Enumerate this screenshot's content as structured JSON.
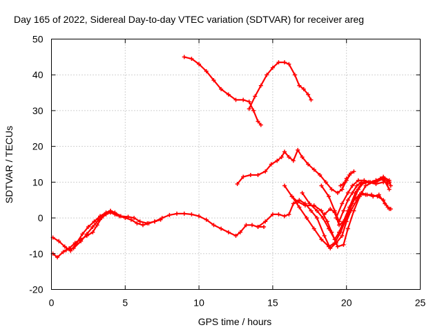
{
  "chart_data": {
    "type": "line",
    "title": "Day 165 of 2022, Sidereal Day-to-day VTEC variation (SDTVAR) for receiver areg",
    "xlabel": "GPS time / hours",
    "ylabel": "SDTVAR / TECUs",
    "xlim": [
      0,
      25
    ],
    "ylim": [
      -20,
      50
    ],
    "xticks": [
      0,
      5,
      10,
      15,
      20,
      25
    ],
    "yticks": [
      -20,
      -10,
      0,
      10,
      20,
      30,
      40,
      50
    ],
    "grid": true,
    "color": "#ff0000",
    "series": [
      {
        "points": [
          [
            0.1,
            -5.5
          ],
          [
            0.5,
            -6.5
          ],
          [
            0.9,
            -8
          ],
          [
            1.3,
            -9.2
          ],
          [
            1.7,
            -7
          ],
          [
            2.1,
            -4.5
          ],
          [
            2.5,
            -2.5
          ],
          [
            2.9,
            -1
          ],
          [
            3.3,
            0.5
          ],
          [
            3.7,
            1.5
          ],
          [
            4.0,
            2
          ],
          [
            4.3,
            1.5
          ],
          [
            4.7,
            0.5
          ],
          [
            5.2,
            0.3
          ],
          [
            5.6,
            0
          ],
          [
            6.0,
            -1
          ],
          [
            6.5,
            -1.5
          ],
          [
            7.0,
            -1
          ],
          [
            7.5,
            0
          ],
          [
            8.0,
            0.8
          ],
          [
            8.5,
            1.2
          ],
          [
            9.0,
            1.2
          ],
          [
            9.5,
            1
          ],
          [
            10.0,
            0.5
          ],
          [
            10.5,
            -0.5
          ],
          [
            11.0,
            -2
          ],
          [
            11.5,
            -3
          ],
          [
            12.0,
            -4
          ],
          [
            12.5,
            -5
          ],
          [
            12.8,
            -4
          ],
          [
            13.2,
            -2
          ],
          [
            13.6,
            -2
          ],
          [
            14.0,
            -2.5
          ],
          [
            14.4,
            -2.5
          ]
        ]
      },
      {
        "points": [
          [
            0.1,
            -10
          ],
          [
            0.4,
            -11
          ],
          [
            0.8,
            -9.5
          ],
          [
            1.2,
            -8.5
          ],
          [
            1.6,
            -7
          ],
          [
            2.0,
            -6
          ],
          [
            2.4,
            -5
          ],
          [
            2.8,
            -4
          ],
          [
            3.1,
            -2
          ],
          [
            3.4,
            0
          ],
          [
            3.7,
            1
          ],
          [
            4.0,
            1.5
          ],
          [
            4.3,
            1
          ],
          [
            4.6,
            0.5
          ],
          [
            5.0,
            0
          ],
          [
            5.4,
            -0.5
          ],
          [
            5.8,
            -1.5
          ],
          [
            6.2,
            -2
          ],
          [
            6.6,
            -1.5
          ],
          [
            7.0,
            -1
          ],
          [
            7.4,
            -0.5
          ]
        ]
      },
      {
        "points": [
          [
            1.0,
            -9
          ],
          [
            1.5,
            -8.5
          ],
          [
            2.0,
            -6.5
          ],
          [
            2.4,
            -4.5
          ],
          [
            2.8,
            -2.5
          ],
          [
            3.2,
            -0.5
          ],
          [
            3.6,
            1
          ],
          [
            4.0,
            1.8
          ],
          [
            4.4,
            1
          ]
        ]
      },
      {
        "points": [
          [
            9.0,
            45
          ],
          [
            9.5,
            44.5
          ],
          [
            10.0,
            43
          ],
          [
            10.5,
            41
          ],
          [
            11.0,
            38.5
          ],
          [
            11.5,
            36
          ],
          [
            12.0,
            34.5
          ],
          [
            12.5,
            33
          ],
          [
            13.0,
            33
          ],
          [
            13.4,
            32.5
          ],
          [
            13.7,
            30
          ],
          [
            14.0,
            27
          ],
          [
            14.2,
            26
          ]
        ]
      },
      {
        "points": [
          [
            13.4,
            30.5
          ],
          [
            13.8,
            34
          ],
          [
            14.2,
            37
          ],
          [
            14.6,
            40
          ],
          [
            15.0,
            42
          ],
          [
            15.4,
            43.5
          ],
          [
            15.8,
            43.5
          ],
          [
            16.1,
            43
          ],
          [
            16.5,
            40
          ],
          [
            16.8,
            37
          ],
          [
            17.1,
            36
          ],
          [
            17.4,
            34.5
          ],
          [
            17.6,
            33
          ]
        ]
      },
      {
        "points": [
          [
            12.6,
            9.5
          ],
          [
            13.0,
            11.5
          ],
          [
            13.5,
            12
          ],
          [
            14.0,
            12
          ],
          [
            14.5,
            13
          ],
          [
            14.9,
            15
          ],
          [
            15.3,
            16
          ],
          [
            15.6,
            17
          ],
          [
            15.8,
            18.5
          ],
          [
            16.1,
            17
          ],
          [
            16.4,
            16
          ],
          [
            16.7,
            19
          ],
          [
            17.0,
            17
          ],
          [
            17.4,
            15
          ],
          [
            17.8,
            13.5
          ],
          [
            18.2,
            12
          ],
          [
            18.6,
            10
          ],
          [
            19.0,
            8
          ],
          [
            19.4,
            7
          ],
          [
            19.7,
            8
          ],
          [
            20.0,
            11
          ]
        ]
      },
      {
        "points": [
          [
            14.0,
            -2.5
          ],
          [
            14.5,
            -1
          ],
          [
            15.0,
            1
          ],
          [
            15.4,
            1
          ],
          [
            15.8,
            0.5
          ],
          [
            16.1,
            1
          ],
          [
            16.4,
            4
          ],
          [
            16.8,
            5
          ],
          [
            17.2,
            4
          ],
          [
            17.6,
            2
          ],
          [
            18.0,
            0
          ],
          [
            18.5,
            -5
          ],
          [
            18.9,
            -8.5
          ],
          [
            19.3,
            -7
          ],
          [
            19.7,
            -5
          ],
          [
            20.0,
            -1
          ],
          [
            20.3,
            2
          ],
          [
            20.7,
            5
          ],
          [
            21.0,
            7
          ],
          [
            21.4,
            6.5
          ],
          [
            21.8,
            6
          ],
          [
            22.2,
            6.5
          ],
          [
            22.6,
            4
          ],
          [
            22.9,
            2.5
          ]
        ]
      },
      {
        "points": [
          [
            15.8,
            9
          ],
          [
            16.3,
            6
          ],
          [
            16.8,
            3
          ],
          [
            17.3,
            0
          ],
          [
            17.8,
            -3
          ],
          [
            18.3,
            -6
          ],
          [
            18.8,
            -8
          ],
          [
            19.2,
            -7
          ],
          [
            19.6,
            -4
          ],
          [
            20.0,
            0
          ],
          [
            20.4,
            4
          ],
          [
            20.8,
            8
          ],
          [
            21.2,
            10
          ],
          [
            21.6,
            10
          ],
          [
            22.0,
            10.5
          ],
          [
            22.5,
            11
          ],
          [
            22.9,
            8
          ]
        ]
      },
      {
        "points": [
          [
            16.3,
            6
          ],
          [
            16.7,
            4.5
          ],
          [
            17.2,
            3.5
          ],
          [
            17.8,
            3.5
          ],
          [
            18.3,
            2
          ],
          [
            18.7,
            -1
          ],
          [
            19.0,
            -4
          ],
          [
            19.4,
            -8
          ],
          [
            19.8,
            -7.5
          ],
          [
            20.1,
            -3
          ],
          [
            20.5,
            2
          ],
          [
            20.9,
            6
          ],
          [
            21.3,
            9
          ],
          [
            21.8,
            10
          ],
          [
            22.3,
            11
          ],
          [
            22.8,
            9.5
          ]
        ]
      },
      {
        "points": [
          [
            17.0,
            7
          ],
          [
            17.5,
            4
          ],
          [
            18.0,
            2
          ],
          [
            18.4,
            0
          ],
          [
            18.8,
            -3
          ],
          [
            19.2,
            -6
          ],
          [
            19.5,
            -4
          ],
          [
            19.8,
            -1
          ],
          [
            20.2,
            3
          ],
          [
            20.6,
            7
          ],
          [
            21.0,
            9.5
          ],
          [
            21.5,
            10
          ],
          [
            22.0,
            10
          ],
          [
            22.5,
            11
          ],
          [
            22.9,
            10
          ]
        ]
      },
      {
        "points": [
          [
            18.3,
            9
          ],
          [
            18.8,
            6
          ],
          [
            19.2,
            2
          ],
          [
            19.5,
            -1
          ],
          [
            19.8,
            2
          ],
          [
            20.1,
            5
          ],
          [
            20.4,
            7
          ],
          [
            20.7,
            9
          ],
          [
            21.0,
            10
          ],
          [
            21.5,
            10
          ],
          [
            22.0,
            9.5
          ],
          [
            22.5,
            10
          ],
          [
            22.9,
            10
          ]
        ]
      },
      {
        "points": [
          [
            18.5,
            1
          ],
          [
            18.9,
            2.5
          ],
          [
            19.2,
            1.5
          ],
          [
            19.5,
            -2
          ],
          [
            19.8,
            -1
          ],
          [
            20.1,
            2
          ],
          [
            20.5,
            5
          ],
          [
            20.9,
            6.5
          ],
          [
            21.3,
            6.5
          ],
          [
            21.7,
            6.5
          ],
          [
            22.1,
            6
          ],
          [
            22.5,
            5
          ],
          [
            22.8,
            3
          ],
          [
            23.0,
            2.5
          ]
        ]
      },
      {
        "points": [
          [
            19.3,
            0
          ],
          [
            19.7,
            4
          ],
          [
            20.1,
            7
          ],
          [
            20.4,
            9
          ],
          [
            20.8,
            10.5
          ],
          [
            21.2,
            10.5
          ],
          [
            21.6,
            10
          ],
          [
            22.0,
            10.5
          ],
          [
            22.5,
            11.5
          ],
          [
            22.9,
            10.5
          ],
          [
            23.0,
            9
          ]
        ]
      },
      {
        "points": [
          [
            19.6,
            9
          ],
          [
            19.9,
            10
          ],
          [
            20.2,
            12
          ],
          [
            20.5,
            13
          ]
        ]
      },
      {
        "points": [
          [
            19.7,
            8
          ],
          [
            20.0,
            10.5
          ],
          [
            20.3,
            12.5
          ]
        ]
      }
    ]
  }
}
